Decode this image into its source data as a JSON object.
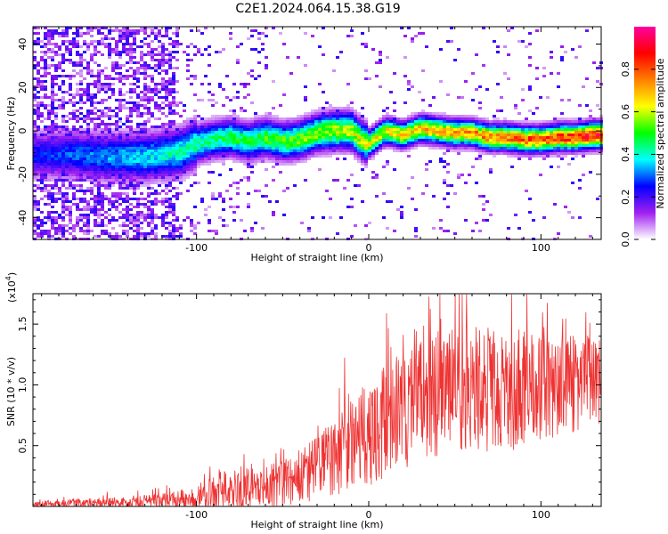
{
  "title": "C2E1.2024.064.15.38.G19",
  "chart_data": [
    {
      "type": "heatmap",
      "xlabel": "Height of straight line (km)",
      "ylabel": "Frequency (Hz)",
      "xlim": [
        -195,
        135
      ],
      "ylim": [
        -50,
        48
      ],
      "xticks": [
        -100,
        0,
        100
      ],
      "yticks": [
        -40,
        -20,
        0,
        20,
        40
      ],
      "ridge": {
        "x": [
          -170,
          -150,
          -130,
          -110,
          -100,
          -90,
          -80,
          -70,
          -60,
          -50,
          -40,
          -30,
          -20,
          -10,
          -3,
          0,
          5,
          10,
          20,
          30,
          40,
          50,
          60,
          70,
          80,
          90,
          100,
          110,
          120,
          130,
          135
        ],
        "freq": [
          -11,
          -12,
          -12,
          -10,
          -6,
          -4,
          -3,
          -5,
          -3,
          -5,
          -4,
          -1,
          0,
          0,
          -5,
          -6,
          -3,
          0,
          -2,
          1,
          0,
          -1,
          -1,
          -3,
          -3,
          -4,
          -4,
          -3,
          -3,
          -2,
          -2
        ]
      },
      "colorbar": {
        "label": "Normalized spectral amplitude",
        "range": [
          0,
          1
        ],
        "ticks": [
          0.0,
          0.2,
          0.4,
          0.6,
          0.8
        ],
        "tick_labels": [
          "0.0",
          "0.2",
          "0.4",
          "0.6",
          "0.8"
        ],
        "colors": [
          "#ffffff",
          "#a020f0",
          "#0000ff",
          "#00ffff",
          "#00ff00",
          "#ffff00",
          "#ff8000",
          "#ff0000",
          "#ff00a0"
        ]
      }
    },
    {
      "type": "line",
      "xlabel": "Height of straight line (km)",
      "ylabel": "SNR (10 * v/v)",
      "multiplier_label": "(x10",
      "multiplier_exp": "4",
      "multiplier_close": ")",
      "xlim": [
        -195,
        135
      ],
      "ylim": [
        0,
        17.5
      ],
      "xticks": [
        -100,
        0,
        100
      ],
      "yticks": [
        5,
        10,
        15
      ],
      "ytick_labels": [
        "0.5",
        "1.0",
        "1.5"
      ],
      "series": [
        {
          "color": "#ee3333",
          "envelope": {
            "x": [
              -195,
              -150,
              -120,
              -100,
              -85,
              -60,
              -45,
              -35,
              -25,
              -15,
              -5,
              0,
              5,
              15,
              25,
              35,
              45,
              55,
              65,
              75,
              85,
              95,
              105,
              115,
              125,
              135
            ],
            "mean": [
              0.2,
              0.3,
              0.4,
              0.7,
              1.3,
              1.6,
              2.1,
              2.7,
              3.5,
              5.0,
              6.0,
              5.8,
              6.5,
              7.6,
              8.3,
              9.0,
              9.3,
              9.7,
              9.9,
              9.5,
              9.6,
              10.0,
              10.1,
              10.0,
              10.2,
              10.5
            ],
            "spread": [
              0.15,
              0.3,
              0.4,
              0.6,
              1.0,
              1.1,
              1.3,
              1.6,
              1.9,
              2.4,
              2.6,
              2.6,
              2.8,
              3.0,
              3.1,
              3.2,
              3.3,
              3.3,
              3.4,
              3.2,
              3.1,
              3.0,
              2.9,
              2.6,
              2.4,
              2.3
            ]
          }
        }
      ]
    }
  ]
}
